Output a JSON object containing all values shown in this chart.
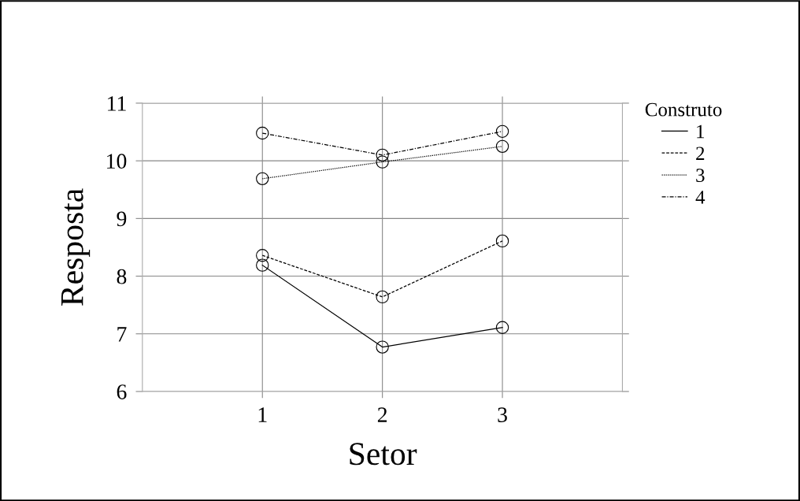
{
  "chart_data": {
    "type": "line",
    "xlabel": "Setor",
    "ylabel": "Resposta",
    "legend_title": "Construto",
    "x": [
      1,
      2,
      3
    ],
    "xlim": [
      0,
      4
    ],
    "xticks": [
      1,
      2,
      3
    ],
    "ylim": [
      6,
      11
    ],
    "yticks": [
      6,
      7,
      8,
      9,
      10,
      11
    ],
    "grid": true,
    "legend": "right",
    "marker": "circle",
    "series": [
      {
        "name": "1",
        "color": "#000000",
        "line_style": "solid",
        "values": [
          8.19,
          6.77,
          7.11
        ]
      },
      {
        "name": "2",
        "color": "#000000",
        "line_style": "dashed",
        "values": [
          8.36,
          7.64,
          8.61
        ]
      },
      {
        "name": "3",
        "color": "#000000",
        "line_style": "dotted",
        "values": [
          9.69,
          9.98,
          10.25
        ]
      },
      {
        "name": "4",
        "color": "#000000",
        "line_style": "dashdot",
        "values": [
          10.48,
          10.1,
          10.51
        ]
      }
    ]
  }
}
